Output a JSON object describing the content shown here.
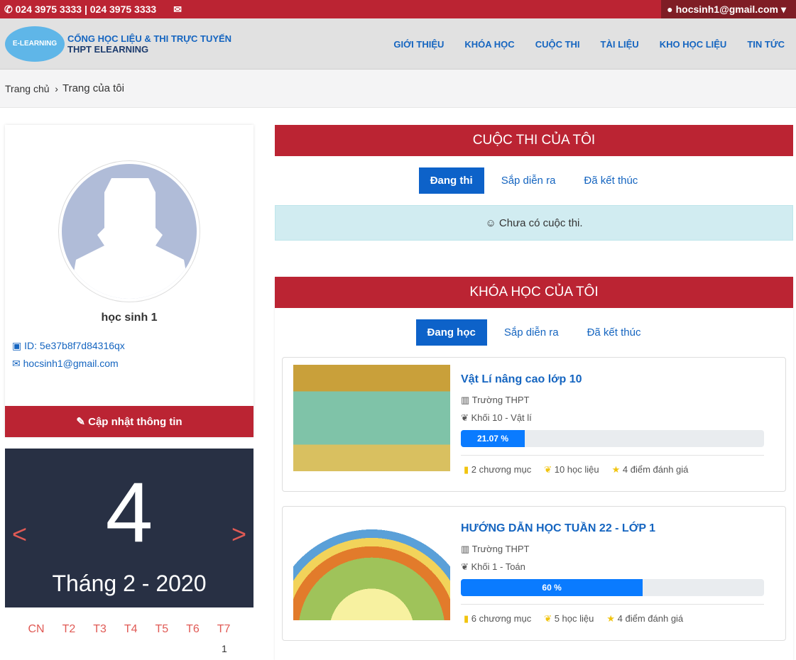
{
  "topbar": {
    "phone": "024 3975 3333 | 024 3975 3333",
    "user": "hocsinh1@gmail.com"
  },
  "brand": {
    "logo_text": "E-LEARNING",
    "line1": "CỔNG HỌC LIỆU & THI TRỰC TUYẾN",
    "line2": "THPT ELEARNING"
  },
  "nav": [
    "GIỚI THIỆU",
    "KHÓA HỌC",
    "CUỘC THI",
    "TÀI LIỆU",
    "KHO HỌC LIỆU",
    "TIN TỨC"
  ],
  "breadcrumb": {
    "home": "Trang chủ",
    "current": "Trang của tôi"
  },
  "profile": {
    "name": "học sinh 1",
    "id": "ID: 5e37b8f7d84316qx",
    "email": "hocsinh1@gmail.com",
    "update": "Cập nhật thông tin"
  },
  "calendar": {
    "day": "4",
    "month": "Tháng 2 - 2020",
    "prev": "<",
    "next": ">",
    "weekdays": [
      "CN",
      "T2",
      "T3",
      "T4",
      "T5",
      "T6",
      "T7"
    ],
    "first": "1"
  },
  "contests": {
    "title": "CUỘC THI CỦA TÔI",
    "tabs": [
      "Đang thi",
      "Sắp diễn ra",
      "Đã kết thúc"
    ],
    "empty": "☺ Chưa có cuộc thi."
  },
  "courses": {
    "title": "KHÓA HỌC CỦA TÔI",
    "tabs": [
      "Đang học",
      "Sắp diễn ra",
      "Đã kết thúc"
    ],
    "items": [
      {
        "title": "Vật Lí nâng cao lớp 10",
        "school": "Trường THPT",
        "grade": "Khối 10 - Vật lí",
        "progress": 21.07,
        "progress_label": "21.07 %",
        "chapters": "2 chương mục",
        "materials": "10 học liệu",
        "rating": "4 điểm đánh giá"
      },
      {
        "title": "HƯỚNG DẪN HỌC TUẦN 22 - LỚP 1",
        "school": "Trường THPT",
        "grade": "Khối 1 - Toán",
        "progress": 60,
        "progress_label": "60 %",
        "chapters": "6 chương mục",
        "materials": "5 học liệu",
        "rating": "4 điểm đánh giá"
      }
    ]
  },
  "colors": {
    "primary_red": "#bb2433",
    "blue": "#0d62c9",
    "progress": "#0a7bff"
  }
}
